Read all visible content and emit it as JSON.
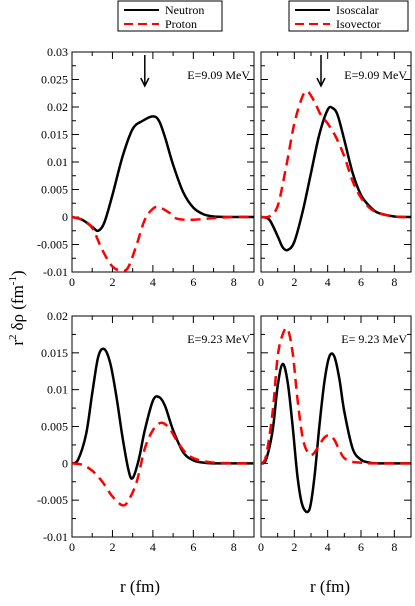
{
  "colors": {
    "neutron": "#000000",
    "proton": "#ff0000",
    "isoscalar": "#000000",
    "isovector": "#ff0000"
  },
  "legends": {
    "left": [
      {
        "label": "Neutron",
        "color": "#000000",
        "dash": "solid"
      },
      {
        "label": "Proton",
        "color": "#ff0000",
        "dash": "dashed"
      }
    ],
    "right": [
      {
        "label": "Isoscalar",
        "color": "#000000",
        "dash": "solid"
      },
      {
        "label": "Isovector",
        "color": "#ff0000",
        "dash": "dashed"
      }
    ]
  },
  "axis_titles": {
    "x_left": "r (fm)",
    "x_right": "r (fm)",
    "y_base": "r",
    "y_exp": "2",
    "y_rest": "δρ (fm",
    "y_exp2": "-1",
    "y_close": ")"
  },
  "chart_data": [
    {
      "type": "line",
      "title": "",
      "xlabel": "",
      "ylabel": "",
      "xlim": [
        0,
        9
      ],
      "ylim": [
        -0.01,
        0.03
      ],
      "xticks": [
        "0",
        "2",
        "4",
        "6",
        "8"
      ],
      "yticks": [
        "-0.01",
        "-0.005",
        "0",
        "0.005",
        "0.01",
        "0.015",
        "0.02",
        "0.025",
        "0.03"
      ],
      "annotation": "E=9.09 MeV",
      "arrow_x": 3.6,
      "series": [
        {
          "name": "Neutron",
          "color": "#000000",
          "dash": "solid",
          "x": [
            0,
            0.5,
            1.0,
            1.3,
            1.6,
            2.0,
            2.5,
            3.0,
            3.5,
            4.0,
            4.3,
            4.6,
            5.0,
            5.5,
            6.0,
            6.5,
            7.0,
            8.0,
            9.0
          ],
          "y": [
            0,
            -0.0005,
            -0.0018,
            -0.0025,
            -0.001,
            0.004,
            0.011,
            0.016,
            0.0175,
            0.0183,
            0.0175,
            0.0145,
            0.0095,
            0.0045,
            0.0017,
            0.0005,
            0.0001,
            0,
            0
          ]
        },
        {
          "name": "Proton",
          "color": "#ff0000",
          "dash": "dashed",
          "x": [
            0,
            0.5,
            1.0,
            1.5,
            2.0,
            2.5,
            2.8,
            3.2,
            3.6,
            4.0,
            4.3,
            4.8,
            5.2,
            6.0,
            7.0,
            8.0,
            9.0
          ],
          "y": [
            0,
            -0.0005,
            -0.002,
            -0.006,
            -0.009,
            -0.0098,
            -0.009,
            -0.005,
            -0.0005,
            0.0015,
            0.0018,
            0.0008,
            -0.0003,
            -0.0005,
            -0.0002,
            0,
            0
          ]
        }
      ]
    },
    {
      "type": "line",
      "title": "",
      "xlabel": "",
      "ylabel": "",
      "xlim": [
        0,
        9
      ],
      "ylim": [
        -0.01,
        0.03
      ],
      "xticks": [
        "0",
        "2",
        "4",
        "6",
        "8"
      ],
      "yticks": [],
      "annotation": "E=9.09 MeV",
      "arrow_x": 3.6,
      "series": [
        {
          "name": "Isoscalar",
          "color": "#000000",
          "dash": "solid",
          "x": [
            0,
            0.5,
            1.0,
            1.3,
            1.6,
            2.0,
            2.5,
            3.0,
            3.5,
            4.0,
            4.3,
            4.6,
            5.0,
            5.5,
            6.0,
            6.5,
            7.0,
            8.0,
            9.0
          ],
          "y": [
            0,
            -0.0005,
            -0.0035,
            -0.0055,
            -0.006,
            -0.0045,
            0.001,
            0.008,
            0.015,
            0.0195,
            0.0198,
            0.0185,
            0.014,
            0.008,
            0.004,
            0.002,
            0.0008,
            0.0001,
            0
          ]
        },
        {
          "name": "Isovector",
          "color": "#ff0000",
          "dash": "dashed",
          "x": [
            0,
            0.5,
            1.0,
            1.5,
            2.0,
            2.5,
            2.8,
            3.2,
            3.6,
            4.0,
            4.5,
            5.0,
            5.5,
            6.0,
            6.5,
            7.0,
            8.0,
            9.0
          ],
          "y": [
            0,
            0.0001,
            0.002,
            0.009,
            0.017,
            0.022,
            0.0228,
            0.021,
            0.0185,
            0.017,
            0.0145,
            0.011,
            0.0065,
            0.0035,
            0.0017,
            0.0008,
            0.0001,
            0
          ]
        }
      ]
    },
    {
      "type": "line",
      "title": "",
      "xlabel": "r (fm)",
      "ylabel": "",
      "xlim": [
        0,
        9
      ],
      "ylim": [
        -0.01,
        0.02
      ],
      "xticks": [
        "0",
        "2",
        "4",
        "6",
        "8"
      ],
      "yticks": [
        "-0.01",
        "-0.005",
        "0",
        "0.005",
        "0.01",
        "0.015",
        "0.02"
      ],
      "annotation": "E=9.23 MeV",
      "series": [
        {
          "name": "Neutron",
          "color": "#000000",
          "dash": "solid",
          "x": [
            0,
            0.3,
            0.7,
            1.0,
            1.3,
            1.6,
            1.9,
            2.2,
            2.5,
            2.8,
            3.0,
            3.3,
            3.6,
            4.0,
            4.3,
            4.6,
            5.0,
            5.5,
            6.0,
            6.5,
            7.0,
            8.0,
            9.0
          ],
          "y": [
            0,
            0.0005,
            0.004,
            0.0095,
            0.0145,
            0.0155,
            0.0135,
            0.009,
            0.0035,
            -0.001,
            -0.002,
            0.0005,
            0.0045,
            0.0085,
            0.009,
            0.0078,
            0.0045,
            0.0015,
            0.0004,
            0.0001,
            0,
            0,
            0
          ]
        },
        {
          "name": "Proton",
          "color": "#ff0000",
          "dash": "dashed",
          "x": [
            0,
            0.5,
            1.0,
            1.5,
            2.0,
            2.5,
            2.8,
            3.2,
            3.6,
            4.0,
            4.4,
            4.8,
            5.2,
            5.6,
            6.0,
            6.5,
            7.0,
            8.0,
            9.0
          ],
          "y": [
            0,
            -0.0002,
            -0.001,
            -0.0025,
            -0.0045,
            -0.0057,
            -0.005,
            -0.0025,
            0.002,
            0.0045,
            0.0055,
            0.0048,
            0.003,
            0.0015,
            0.0007,
            0.0003,
            0.0001,
            0,
            0
          ]
        }
      ]
    },
    {
      "type": "line",
      "title": "",
      "xlabel": "r (fm)",
      "ylabel": "",
      "xlim": [
        0,
        9
      ],
      "ylim": [
        -0.01,
        0.02
      ],
      "xticks": [
        "0",
        "2",
        "4",
        "6",
        "8"
      ],
      "yticks": [],
      "annotation": "E= 9.23 MeV",
      "series": [
        {
          "name": "Isoscalar",
          "color": "#000000",
          "dash": "solid",
          "x": [
            0,
            0.3,
            0.7,
            1.0,
            1.3,
            1.6,
            1.9,
            2.2,
            2.5,
            2.9,
            3.2,
            3.5,
            3.8,
            4.1,
            4.4,
            4.7,
            5.0,
            5.5,
            6.0,
            6.5,
            7.0,
            8.0,
            9.0
          ],
          "y": [
            0,
            0.0005,
            0.0045,
            0.0105,
            0.0135,
            0.011,
            0.005,
            -0.002,
            -0.0058,
            -0.0063,
            -0.002,
            0.005,
            0.011,
            0.0145,
            0.0145,
            0.0115,
            0.007,
            0.002,
            0.0005,
            0.0001,
            0,
            0,
            0
          ]
        },
        {
          "name": "Isovector",
          "color": "#ff0000",
          "dash": "dashed",
          "x": [
            0,
            0.3,
            0.7,
            1.0,
            1.3,
            1.6,
            1.9,
            2.2,
            2.5,
            2.8,
            3.1,
            3.5,
            3.8,
            4.1,
            4.4,
            4.7,
            5.0,
            5.5,
            6.0,
            6.5,
            7.0,
            8.0,
            9.0
          ],
          "y": [
            0,
            0.001,
            0.007,
            0.0145,
            0.0175,
            0.0182,
            0.015,
            0.0085,
            0.0035,
            0.0015,
            0.0012,
            0.0025,
            0.0035,
            0.0038,
            0.0032,
            0.0018,
            0.0007,
            0.0002,
            0.0001,
            0,
            0,
            0,
            0
          ]
        }
      ]
    }
  ]
}
